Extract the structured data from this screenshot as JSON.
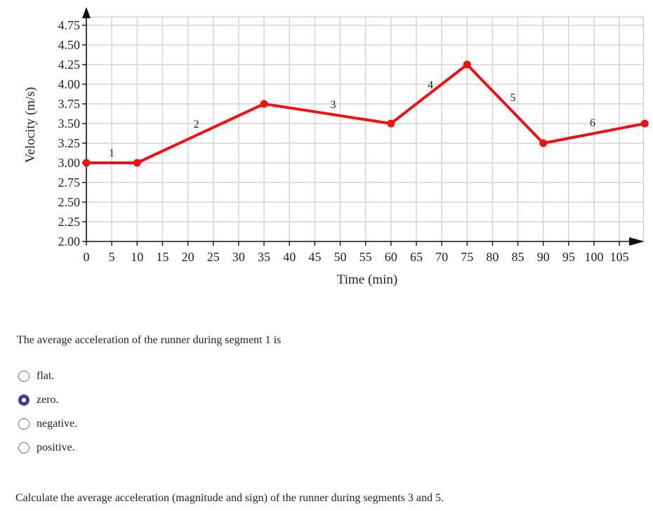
{
  "chart_data": {
    "type": "line",
    "xlabel": "Time (min)",
    "ylabel": "Velocity (m/s)",
    "xlim": [
      0,
      110
    ],
    "ylim": [
      2.0,
      4.75
    ],
    "x_ticks": [
      0,
      5,
      10,
      15,
      20,
      25,
      30,
      35,
      40,
      45,
      50,
      55,
      60,
      65,
      70,
      75,
      80,
      85,
      90,
      95,
      100,
      105
    ],
    "y_ticks": [
      2.0,
      2.25,
      2.5,
      2.75,
      3.0,
      3.25,
      3.5,
      3.75,
      4.0,
      4.25,
      4.5,
      4.75
    ],
    "y_tick_labels": [
      "2.00",
      "2.25",
      "2.50",
      "2.75",
      "3.00",
      "3.25",
      "3.50",
      "3.75",
      "4.00",
      "4.25",
      "4.50",
      "4.75"
    ],
    "grid": true,
    "series": [
      {
        "color": "#ee1111",
        "points": [
          {
            "x": 0,
            "y": 3.0
          },
          {
            "x": 10,
            "y": 3.0
          },
          {
            "x": 35,
            "y": 3.75
          },
          {
            "x": 60,
            "y": 3.5
          },
          {
            "x": 75,
            "y": 4.25
          },
          {
            "x": 90,
            "y": 3.25
          },
          {
            "x": 110,
            "y": 3.5
          }
        ]
      }
    ],
    "segment_labels": [
      "1",
      "2",
      "3",
      "4",
      "5",
      "6"
    ]
  },
  "question": {
    "prompt": "The average acceleration of the runner during segment 1 is",
    "options": [
      {
        "label": "flat.",
        "selected": false
      },
      {
        "label": "zero.",
        "selected": true
      },
      {
        "label": "negative.",
        "selected": false
      },
      {
        "label": "positive.",
        "selected": false
      }
    ]
  },
  "followup": "Calculate the average acceleration (magnitude and sign) of the runner during segments 3 and 5."
}
